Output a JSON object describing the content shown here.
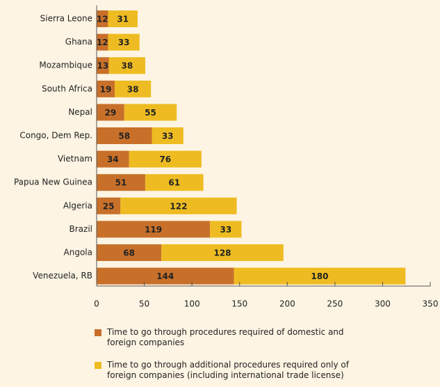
{
  "chart_data": {
    "type": "stacked_barh",
    "categories": [
      "Sierra Leone",
      "Ghana",
      "Mozambique",
      "South Africa",
      "Nepal",
      "Congo, Dem Rep.",
      "Vietnam",
      "Papua New Guinea",
      "Algeria",
      "Brazil",
      "Angola",
      "Venezuela, RB"
    ],
    "series": [
      {
        "name": "Time to go through procedures required of domestic and foreign companies",
        "color": "#c8702a",
        "values": [
          12,
          12,
          13,
          19,
          29,
          58,
          34,
          51,
          25,
          119,
          68,
          144
        ]
      },
      {
        "name": "Time to go through additional procedures required only of foreign companies (including international trade license)",
        "color": "#eebc22",
        "values": [
          31,
          33,
          38,
          38,
          55,
          33,
          76,
          61,
          122,
          33,
          128,
          180
        ]
      }
    ],
    "xlim": [
      0,
      350
    ],
    "xticks": [
      0,
      50,
      100,
      150,
      200,
      250,
      300,
      350
    ]
  }
}
